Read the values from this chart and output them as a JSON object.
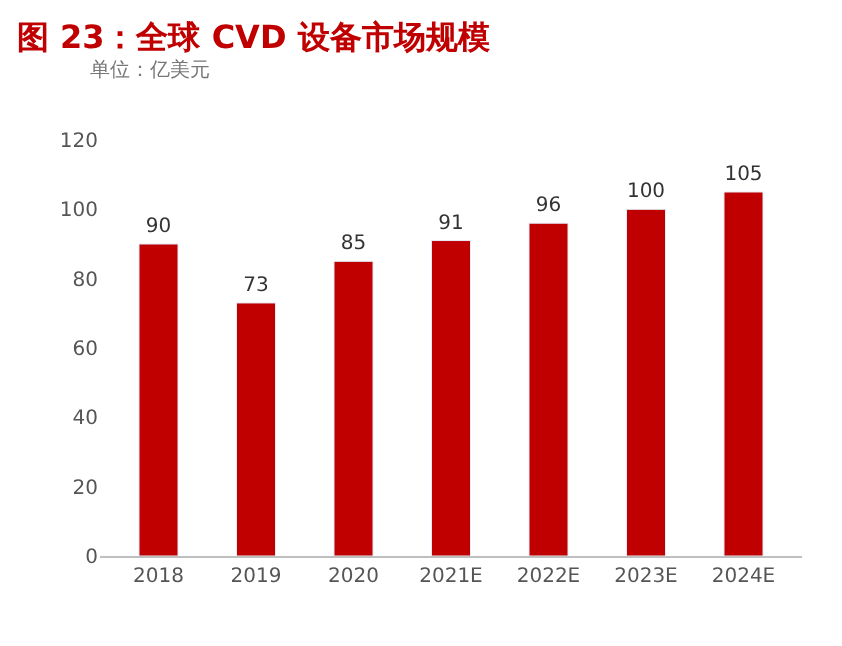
{
  "chart_data": {
    "type": "bar",
    "title": "图 23：全球 CVD 设备市场规模",
    "annotations": [
      "单位：亿美元"
    ],
    "categories": [
      "2018",
      "2019",
      "2020",
      "2021E",
      "2022E",
      "2023E",
      "2024E"
    ],
    "values": [
      90,
      73,
      85,
      91,
      96,
      100,
      105
    ],
    "color": "#c00000",
    "ylim": [
      0,
      120
    ],
    "yticks": [
      0,
      20,
      40,
      60,
      80,
      100,
      120
    ],
    "grid": false,
    "legend": false,
    "data_labels": true
  }
}
